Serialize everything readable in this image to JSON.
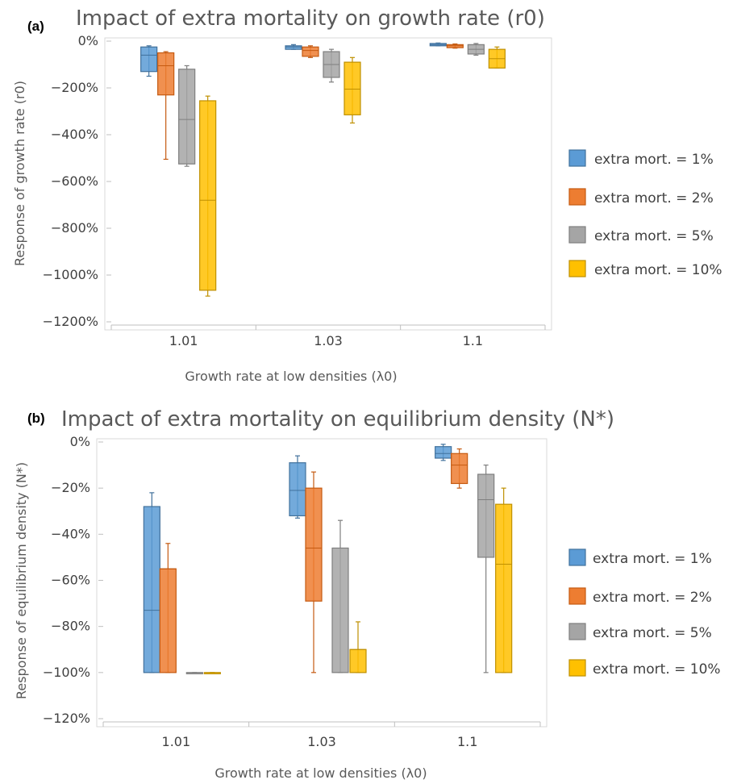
{
  "panels": [
    {
      "label": "(a)",
      "title": "Impact of extra mortality on growth rate (r0)",
      "ylabel": "Response of growth rate (r0)",
      "xlabel": "Growth rate at low densities (λ0)"
    },
    {
      "label": "(b)",
      "title": "Impact of extra mortality on equilibrium density (N*)",
      "ylabel": "Response of  equilibrium density (N*)",
      "xlabel": "Growth rate at low densities (λ0)"
    }
  ],
  "chart_data": [
    {
      "type": "box",
      "title": "Impact of extra mortality on growth rate (r0)",
      "xlabel": "Growth rate at low densities (λ0)",
      "ylabel": "Response of growth rate (r0)",
      "categories": [
        "1.01",
        "1.03",
        "1.1"
      ],
      "ylim": [
        -1200,
        0
      ],
      "yticks": [
        0,
        -200,
        -400,
        -600,
        -800,
        -1000,
        -1200
      ],
      "ytick_labels": [
        "0%",
        "−200%",
        "−400%",
        "−600%",
        "−800%",
        "−1000%",
        "−1200%"
      ],
      "unit": "%",
      "legend_position": "right",
      "grid": false,
      "series": [
        {
          "name": "extra mort. = 1%",
          "color": "#5B9BD5",
          "edge": "#41719C",
          "boxes": [
            {
              "min": -150,
              "q1": -130,
              "median": -60,
              "q3": -25,
              "max": -20
            },
            {
              "min": -35,
              "q1": -35,
              "median": -25,
              "q3": -20,
              "max": -15
            },
            {
              "min": -20,
              "q1": -20,
              "median": -15,
              "q3": -10,
              "max": -8
            }
          ]
        },
        {
          "name": "extra mort. = 2%",
          "color": "#ED7D31",
          "edge": "#C55A11",
          "boxes": [
            {
              "min": -505,
              "q1": -230,
              "median": -105,
              "q3": -50,
              "max": -45
            },
            {
              "min": -70,
              "q1": -65,
              "median": -40,
              "q3": -25,
              "max": -20
            },
            {
              "min": -30,
              "q1": -28,
              "median": -20,
              "q3": -15,
              "max": -12
            }
          ]
        },
        {
          "name": "extra mort. = 5%",
          "color": "#A5A5A5",
          "edge": "#7F7F7F",
          "boxes": [
            {
              "min": -535,
              "q1": -525,
              "median": -335,
              "q3": -120,
              "max": -105
            },
            {
              "min": -175,
              "q1": -155,
              "median": -100,
              "q3": -45,
              "max": -35
            },
            {
              "min": -60,
              "q1": -55,
              "median": -35,
              "q3": -15,
              "max": -10
            }
          ]
        },
        {
          "name": "extra mort. = 10%",
          "color": "#FFC000",
          "edge": "#BF9000",
          "boxes": [
            {
              "min": -1090,
              "q1": -1065,
              "median": -680,
              "q3": -255,
              "max": -235
            },
            {
              "min": -350,
              "q1": -315,
              "median": -205,
              "q3": -90,
              "max": -70
            },
            {
              "min": -115,
              "q1": -115,
              "median": -75,
              "q3": -35,
              "max": -25
            }
          ]
        }
      ]
    },
    {
      "type": "box",
      "title": "Impact of extra mortality on equilibrium density (N*)",
      "xlabel": "Growth rate at low densities (λ0)",
      "ylabel": "Response of  equilibrium density (N*)",
      "categories": [
        "1.01",
        "1.03",
        "1.1"
      ],
      "ylim": [
        -120,
        0
      ],
      "yticks": [
        0,
        -20,
        -40,
        -60,
        -80,
        -100,
        -120
      ],
      "ytick_labels": [
        "0%",
        "−20%",
        "−40%",
        "−60%",
        "−80%",
        "−100%",
        "−120%"
      ],
      "unit": "%",
      "legend_position": "right",
      "grid": false,
      "series": [
        {
          "name": "extra mort. = 1%",
          "color": "#5B9BD5",
          "edge": "#41719C",
          "boxes": [
            {
              "min": -100,
              "q1": -100,
              "median": -73,
              "q3": -28,
              "max": -22
            },
            {
              "min": -33,
              "q1": -32,
              "median": -21,
              "q3": -9,
              "max": -6
            },
            {
              "min": -8,
              "q1": -7,
              "median": -5,
              "q3": -2,
              "max": -1
            }
          ]
        },
        {
          "name": "extra mort. = 2%",
          "color": "#ED7D31",
          "edge": "#C55A11",
          "boxes": [
            {
              "min": -100,
              "q1": -100,
              "median": -55,
              "q3": -55,
              "max": -44
            },
            {
              "min": -100,
              "q1": -69,
              "median": -46,
              "q3": -20,
              "max": -13
            },
            {
              "min": -20,
              "q1": -18,
              "median": -10,
              "q3": -5,
              "max": -3
            }
          ]
        },
        {
          "name": "extra mort. = 5%",
          "color": "#A5A5A5",
          "edge": "#7F7F7F",
          "boxes": [
            {
              "min": -100,
              "q1": -100,
              "median": -100,
              "q3": -100,
              "max": -100
            },
            {
              "min": -100,
              "q1": -100,
              "median": -46,
              "q3": -46,
              "max": -34
            },
            {
              "min": -100,
              "q1": -50,
              "median": -25,
              "q3": -14,
              "max": -10
            }
          ]
        },
        {
          "name": "extra mort. = 10%",
          "color": "#FFC000",
          "edge": "#BF9000",
          "boxes": [
            {
              "min": -100,
              "q1": -100,
              "median": -100,
              "q3": -100,
              "max": -100
            },
            {
              "min": -100,
              "q1": -100,
              "median": -90,
              "q3": -90,
              "max": -78
            },
            {
              "min": -100,
              "q1": -100,
              "median": -53,
              "q3": -27,
              "max": -20
            }
          ]
        }
      ]
    }
  ]
}
